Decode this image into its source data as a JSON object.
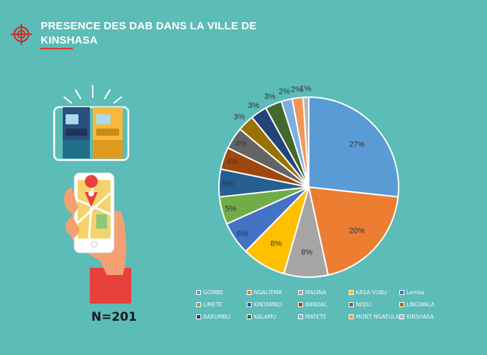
{
  "header": {
    "title": "PRESENCE DES DAB DANS LA VILLE DE KINSHASA"
  },
  "sample_size": "N=201",
  "chart_data": {
    "type": "pie",
    "categories": [
      "GOMBE",
      "NGALIEMA",
      "MASINA",
      "KASA VUBU",
      "Lemba",
      "LIMETE",
      "KINTAMBO",
      "BANDAL",
      "NDJILI",
      "LINGWALA",
      "BARUMBU",
      "KALAMU",
      "MATETE",
      "MONT NGAFULA",
      "KINSHASA"
    ],
    "values": [
      27,
      20,
      8,
      8,
      6,
      5,
      5,
      4,
      4,
      3,
      3,
      3,
      2,
      2,
      1
    ],
    "labels": [
      "27%",
      "20%",
      "8%",
      "8%",
      "6%",
      "5%",
      "5%",
      "4%",
      "4%",
      "3%",
      "3%",
      "3%",
      "2%",
      "2%",
      "1%"
    ],
    "colors": [
      "#5b9bd5",
      "#ed7d31",
      "#a5a5a5",
      "#ffc000",
      "#4472c4",
      "#70ad47",
      "#255e91",
      "#9e480e",
      "#636363",
      "#997300",
      "#264478",
      "#43682b",
      "#7cafdd",
      "#f1975a",
      "#b7b7b7"
    ],
    "legend_position": "bottom"
  }
}
